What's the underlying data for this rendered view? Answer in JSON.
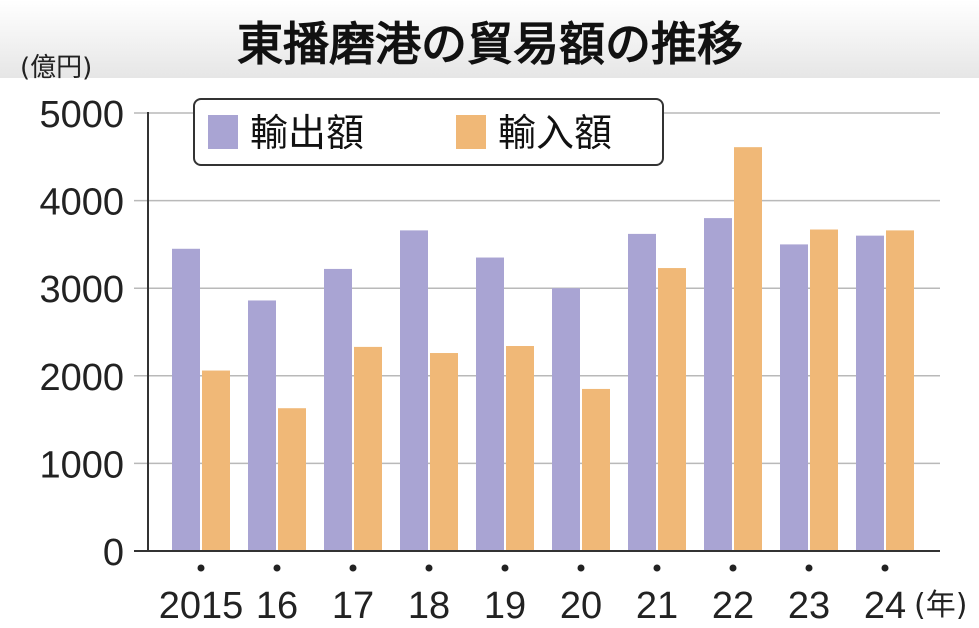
{
  "chart_data": {
    "type": "bar",
    "title": "東播磨港の貿易額の推移",
    "y_unit_label": "(億円)",
    "x_unit_label": "(年)",
    "categories": [
      "2015",
      "16",
      "17",
      "18",
      "19",
      "20",
      "21",
      "22",
      "23",
      "24"
    ],
    "series": [
      {
        "name": "輸出額",
        "color": "#a9a4d3",
        "values": [
          3450,
          2860,
          3220,
          3660,
          3350,
          3000,
          3620,
          3800,
          3500,
          3600
        ]
      },
      {
        "name": "輸入額",
        "color": "#f0b877",
        "values": [
          2060,
          1630,
          2330,
          2260,
          2340,
          1850,
          3230,
          4610,
          3670,
          3660
        ]
      }
    ],
    "ylim": [
      0,
      5000
    ],
    "yticks": [
      0,
      1000,
      2000,
      3000,
      4000,
      5000
    ],
    "grid": true,
    "legend_position": "top-left"
  }
}
